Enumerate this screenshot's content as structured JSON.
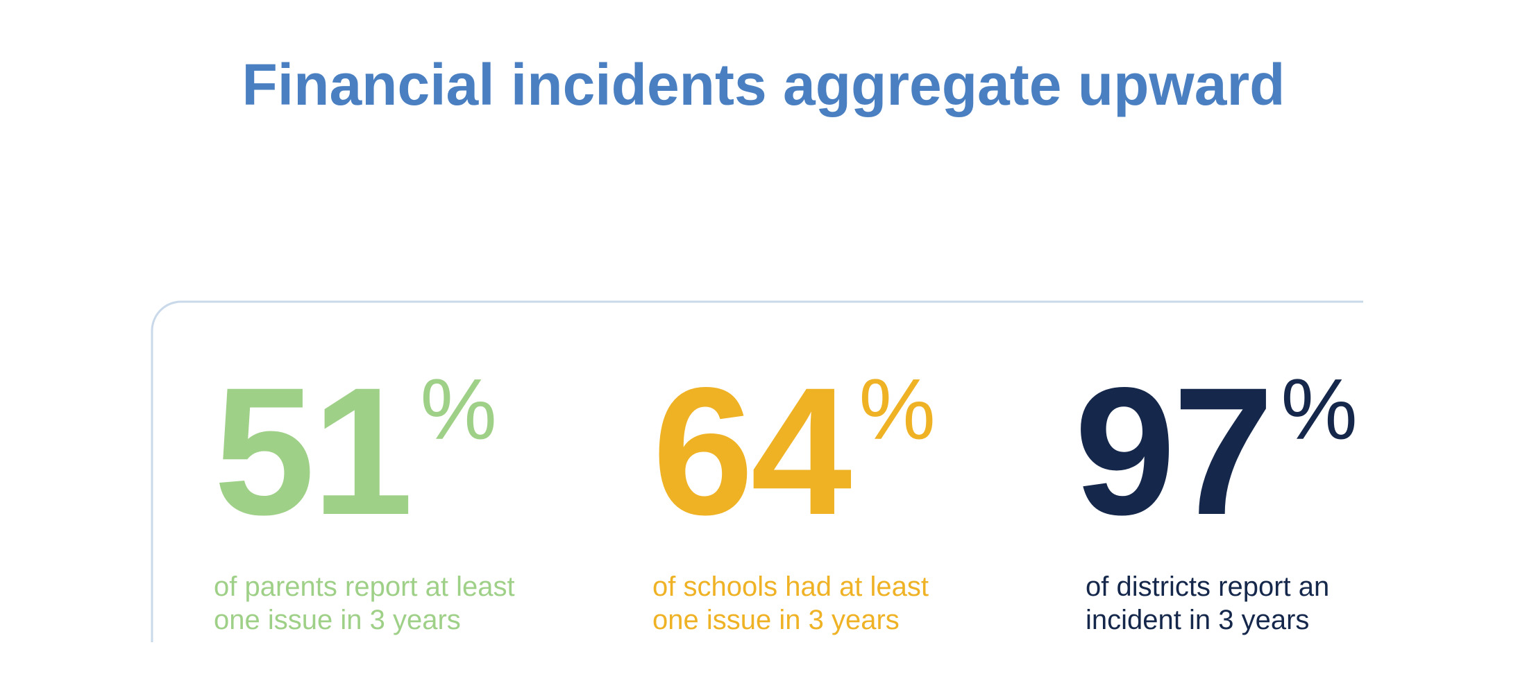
{
  "title": "Financial incidents aggregate upward",
  "stats": [
    {
      "number": "51",
      "unit": "%",
      "caption_lines": [
        "of parents report at least",
        "one issue in 3 years"
      ],
      "color": "#9fd087"
    },
    {
      "number": "64",
      "unit": "%",
      "caption_lines": [
        "of schools had at least",
        "one issue in 3 years"
      ],
      "color": "#efb225"
    },
    {
      "number": "97",
      "unit": "%",
      "caption_lines": [
        "of districts report an",
        "incident in 3 years"
      ],
      "color": "#15284b"
    }
  ]
}
